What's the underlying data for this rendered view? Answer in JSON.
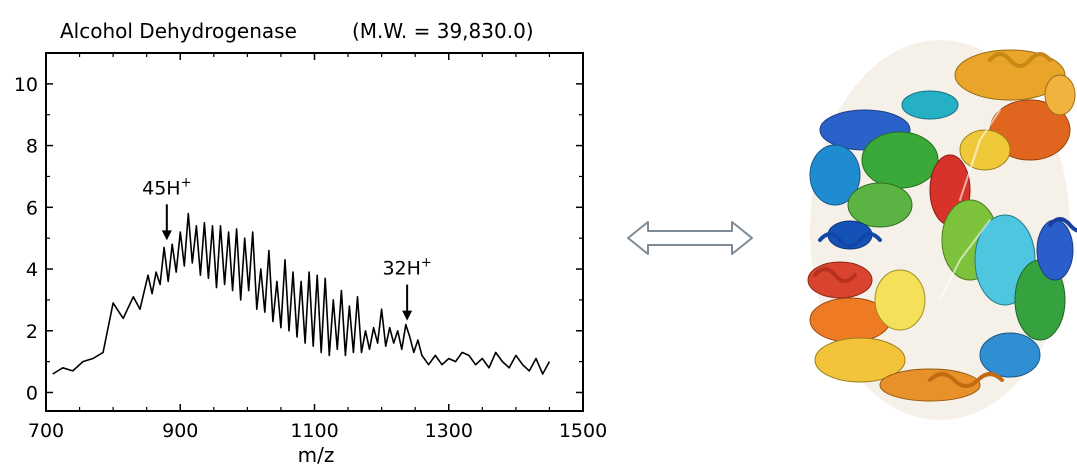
{
  "chart_data": {
    "type": "line",
    "title": "Alcohol Dehydrogenase",
    "subtitle": "(M.W. = 39,830.0)",
    "xlabel": "m/z",
    "ylabel": "",
    "xlim": [
      700,
      1500
    ],
    "ylim": [
      -0.6,
      11
    ],
    "xticks": [
      "700",
      "900",
      "1100",
      "1300",
      "1500"
    ],
    "yticks": [
      "0",
      "2",
      "4",
      "6",
      "8",
      "10"
    ],
    "grid": false,
    "series": [
      {
        "x": [
          710,
          725,
          740,
          755,
          770,
          785,
          800,
          815,
          830,
          840,
          852,
          858,
          864,
          870,
          876,
          882,
          888,
          894,
          900,
          906,
          912,
          918,
          924,
          930,
          936,
          942,
          948,
          954,
          960,
          966,
          972,
          978,
          984,
          990,
          996,
          1002,
          1008,
          1014,
          1020,
          1026,
          1032,
          1038,
          1044,
          1050,
          1056,
          1062,
          1068,
          1074,
          1080,
          1086,
          1092,
          1098,
          1104,
          1110,
          1116,
          1122,
          1128,
          1134,
          1140,
          1146,
          1152,
          1158,
          1164,
          1170,
          1176,
          1182,
          1188,
          1194,
          1200,
          1206,
          1212,
          1218,
          1224,
          1230,
          1236,
          1242,
          1248,
          1254,
          1260,
          1270,
          1280,
          1290,
          1300,
          1310,
          1320,
          1330,
          1340,
          1350,
          1360,
          1370,
          1380,
          1390,
          1400,
          1410,
          1420,
          1430,
          1440,
          1450
        ],
        "y": [
          0.6,
          0.8,
          0.7,
          1.0,
          1.1,
          1.3,
          2.9,
          2.4,
          3.1,
          2.7,
          3.8,
          3.2,
          3.9,
          3.5,
          4.7,
          3.6,
          4.8,
          3.9,
          5.2,
          4.1,
          5.8,
          4.2,
          5.4,
          3.8,
          5.5,
          3.7,
          5.4,
          3.4,
          5.4,
          3.5,
          5.2,
          3.3,
          5.3,
          3.0,
          5.0,
          3.3,
          5.2,
          2.7,
          4.0,
          2.6,
          4.6,
          2.3,
          3.6,
          2.1,
          4.3,
          2.0,
          3.9,
          1.8,
          3.6,
          1.6,
          3.9,
          1.5,
          3.8,
          1.3,
          3.7,
          1.2,
          3.0,
          1.4,
          3.3,
          1.2,
          2.8,
          1.3,
          3.1,
          1.3,
          2.0,
          1.4,
          2.1,
          1.6,
          2.7,
          1.5,
          2.1,
          1.6,
          2.0,
          1.4,
          2.2,
          1.8,
          1.3,
          1.7,
          1.2,
          0.9,
          1.2,
          0.9,
          1.1,
          1.0,
          1.3,
          1.2,
          0.9,
          1.1,
          0.8,
          1.3,
          1.0,
          0.8,
          1.2,
          0.9,
          0.7,
          1.1,
          0.6,
          1.0
        ]
      }
    ],
    "annotations": [
      {
        "label": "45H",
        "superscript": "+",
        "x": 880,
        "y": 4.8
      },
      {
        "label": "32H",
        "superscript": "+",
        "x": 1238,
        "y": 2.2
      }
    ]
  },
  "arrow_icon": "double-arrow-icon",
  "structure_icon": "protein-ribbon-structure-icon"
}
